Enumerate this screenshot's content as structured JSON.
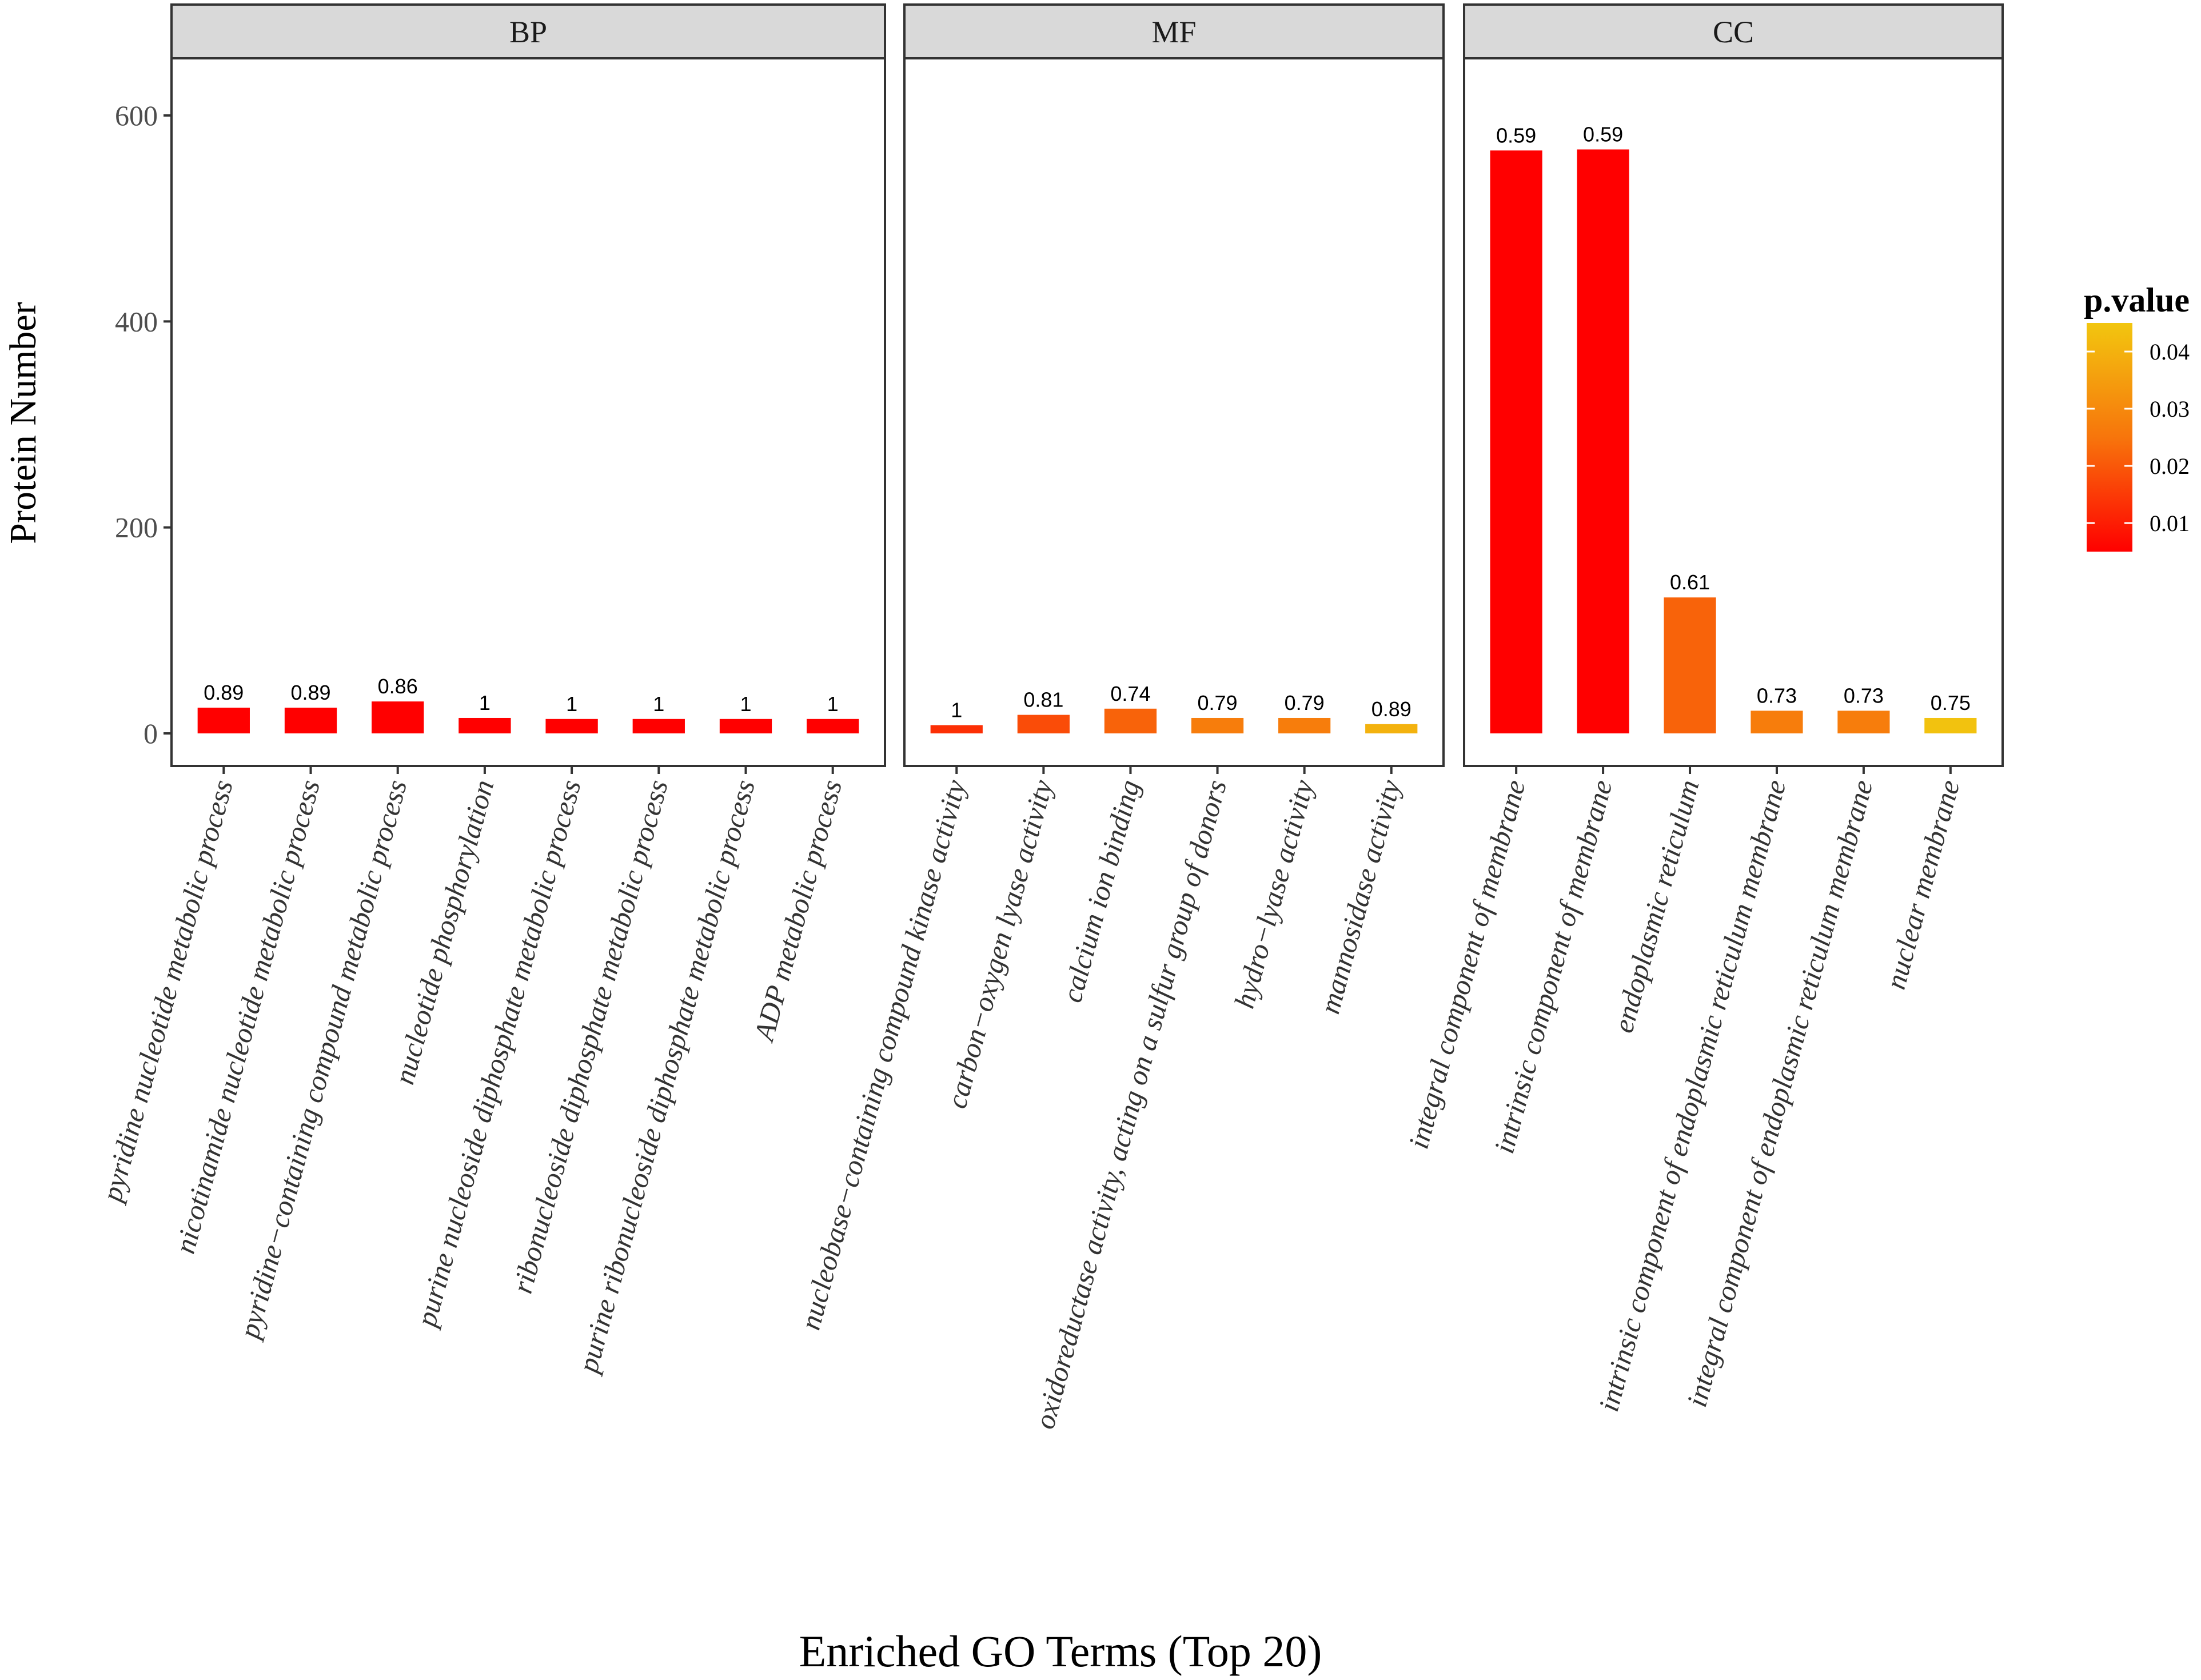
{
  "chart_data": {
    "type": "bar",
    "title": "",
    "xlabel": "Enriched GO Terms (Top 20)",
    "ylabel": "Protein Number",
    "ylim": [
      0,
      660
    ],
    "yticks": [
      0,
      200,
      400,
      600
    ],
    "grid": false,
    "legend_position": "right",
    "colorbar": {
      "title": "p.value",
      "range": [
        0.005,
        0.045
      ],
      "ticks": [
        0.01,
        0.02,
        0.03,
        0.04
      ],
      "tick_labels": [
        "0.01",
        "0.02",
        "0.03",
        "0.04"
      ],
      "low_color": "#ff0000",
      "high_color": "#f2c60f"
    },
    "panels": [
      {
        "name": "BP",
        "categories": [
          "pyridine nucleotide metabolic process",
          "nicotinamide nucleotide metabolic process",
          "pyridine−containing compound metabolic process",
          "nucleotide phosphorylation",
          "purine nucleoside diphosphate metabolic process",
          "ribonucleoside diphosphate metabolic process",
          "purine ribonucleoside diphosphate metabolic process",
          "ADP metabolic process"
        ],
        "values": [
          25,
          25,
          31,
          15,
          14,
          14,
          14,
          14
        ],
        "labels": [
          "0.89",
          "0.89",
          "0.86",
          "1",
          "1",
          "1",
          "1",
          "1"
        ],
        "pvalues": [
          0.005,
          0.005,
          0.005,
          0.005,
          0.005,
          0.005,
          0.005,
          0.005
        ]
      },
      {
        "name": "MF",
        "categories": [
          "nucleobase−containing compound kinase activity",
          "carbon−oxygen lyase activity",
          "calcium ion binding",
          "oxidoreductase activity, acting on a sulfur group of donors",
          "hydro−lyase activity",
          "mannosidase activity"
        ],
        "values": [
          8,
          18,
          24,
          15,
          15,
          9
        ],
        "labels": [
          "1",
          "0.81",
          "0.74",
          "0.79",
          "0.79",
          "0.89"
        ],
        "pvalues": [
          0.013,
          0.018,
          0.022,
          0.027,
          0.027,
          0.04
        ]
      },
      {
        "name": "CC",
        "categories": [
          "integral component of membrane",
          "intrinsic component of membrane",
          "endoplasmic reticulum",
          "intrinsic component of endoplasmic reticulum membrane",
          "integral component of endoplasmic reticulum membrane",
          "nuclear membrane"
        ],
        "values": [
          566,
          567,
          132,
          22,
          22,
          15
        ],
        "labels": [
          "0.59",
          "0.59",
          "0.61",
          "0.73",
          "0.73",
          "0.75"
        ],
        "pvalues": [
          0.005,
          0.005,
          0.022,
          0.027,
          0.027,
          0.044
        ]
      }
    ]
  }
}
